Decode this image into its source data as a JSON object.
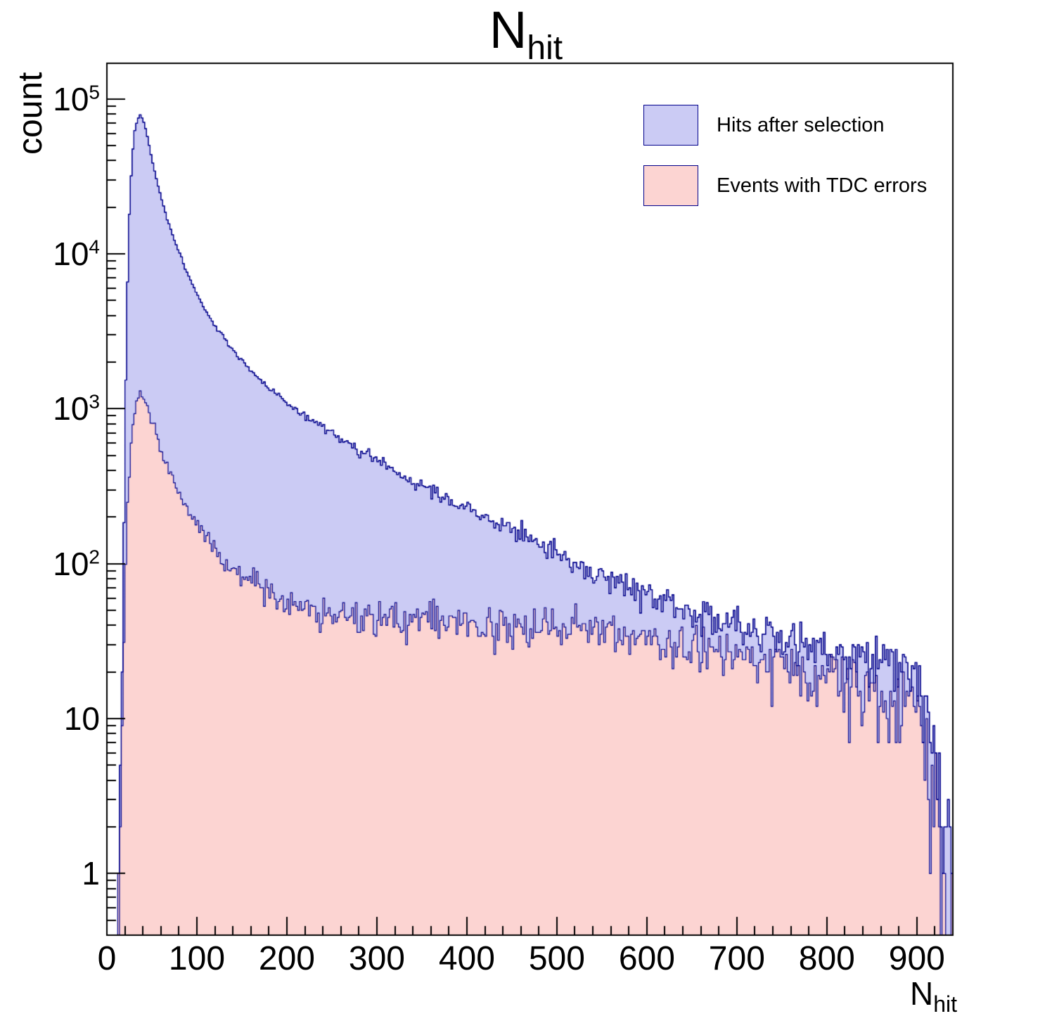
{
  "title": {
    "text": "N",
    "subscript": "hit"
  },
  "axes": {
    "y": {
      "label": "count",
      "scale": "log",
      "major_ticks": [
        {
          "base": "1",
          "value": 1
        },
        {
          "base": "10",
          "value": 10
        },
        {
          "base": "10",
          "exp": "2",
          "value": 100
        },
        {
          "base": "10",
          "exp": "3",
          "value": 1000
        },
        {
          "base": "10",
          "exp": "4",
          "value": 10000
        },
        {
          "base": "10",
          "exp": "5",
          "value": 100000
        }
      ]
    },
    "x": {
      "label": "N",
      "label_subscript": "hit",
      "major_tick_values": [
        0,
        100,
        200,
        300,
        400,
        500,
        600,
        700,
        800,
        900
      ],
      "minor_tick_step": 20
    }
  },
  "legend": {
    "position": "top-right",
    "items": [
      {
        "label": "Hits after selection",
        "fill": "#cbcbf4",
        "line": "#00008b"
      },
      {
        "label": "Events with TDC errors",
        "fill": "#fcd4d2",
        "line": "#00008b"
      }
    ]
  },
  "chart_data": {
    "type": "area",
    "title": "N_hit",
    "xlabel": "N_hit",
    "ylabel": "count",
    "y_scale": "log",
    "xlim": [
      0,
      940
    ],
    "ylim": [
      0.4,
      170000
    ],
    "bin_width": 2,
    "noise_seed": 7,
    "noise_model": "poisson-per-bin",
    "series": [
      {
        "name": "Hits after selection",
        "fill": "#cbcbf4",
        "line": "#00008b",
        "anchors": [
          [
            9,
            0.4
          ],
          [
            12,
            0.8
          ],
          [
            15,
            3
          ],
          [
            18,
            60
          ],
          [
            20,
            600
          ],
          [
            22,
            4000
          ],
          [
            25,
            18000
          ],
          [
            28,
            42000
          ],
          [
            31,
            62000
          ],
          [
            34,
            74000
          ],
          [
            37,
            79000
          ],
          [
            40,
            74000
          ],
          [
            43,
            64000
          ],
          [
            46,
            54000
          ],
          [
            50,
            41000
          ],
          [
            55,
            30500
          ],
          [
            60,
            23500
          ],
          [
            65,
            18500
          ],
          [
            70,
            15000
          ],
          [
            75,
            12300
          ],
          [
            80,
            10300
          ],
          [
            85,
            8700
          ],
          [
            90,
            7400
          ],
          [
            95,
            6400
          ],
          [
            100,
            5500
          ],
          [
            110,
            4250
          ],
          [
            120,
            3450
          ],
          [
            130,
            2850
          ],
          [
            140,
            2400
          ],
          [
            150,
            2060
          ],
          [
            160,
            1790
          ],
          [
            170,
            1560
          ],
          [
            180,
            1370
          ],
          [
            190,
            1220
          ],
          [
            200,
            1090
          ],
          [
            215,
            940
          ],
          [
            230,
            815
          ],
          [
            245,
            715
          ],
          [
            260,
            630
          ],
          [
            275,
            560
          ],
          [
            290,
            498
          ],
          [
            305,
            447
          ],
          [
            320,
            399
          ],
          [
            335,
            356
          ],
          [
            350,
            318
          ],
          [
            365,
            286
          ],
          [
            380,
            258
          ],
          [
            395,
            233
          ],
          [
            410,
            211
          ],
          [
            425,
            192
          ],
          [
            440,
            174
          ],
          [
            455,
            158
          ],
          [
            470,
            144
          ],
          [
            485,
            130
          ],
          [
            500,
            116
          ],
          [
            515,
            105
          ],
          [
            530,
            96
          ],
          [
            545,
            88
          ],
          [
            560,
            81
          ],
          [
            575,
            74
          ],
          [
            590,
            68
          ],
          [
            605,
            63
          ],
          [
            620,
            58
          ],
          [
            635,
            54
          ],
          [
            650,
            51
          ],
          [
            665,
            48
          ],
          [
            680,
            45
          ],
          [
            695,
            42
          ],
          [
            710,
            40
          ],
          [
            725,
            38
          ],
          [
            740,
            36
          ],
          [
            755,
            34
          ],
          [
            770,
            32
          ],
          [
            785,
            30
          ],
          [
            800,
            28
          ],
          [
            815,
            27
          ],
          [
            830,
            26
          ],
          [
            845,
            25
          ],
          [
            860,
            24
          ],
          [
            875,
            23
          ],
          [
            890,
            21
          ],
          [
            900,
            20
          ],
          [
            906,
            17
          ],
          [
            912,
            12
          ],
          [
            918,
            8
          ],
          [
            924,
            5
          ],
          [
            930,
            3
          ],
          [
            935,
            2
          ],
          [
            940,
            1
          ]
        ]
      },
      {
        "name": "Events with TDC errors",
        "fill": "#fcd4d2",
        "line": "#00008b",
        "anchors": [
          [
            11,
            0.4
          ],
          [
            14,
            1
          ],
          [
            17,
            8
          ],
          [
            20,
            60
          ],
          [
            23,
            250
          ],
          [
            26,
            550
          ],
          [
            29,
            850
          ],
          [
            32,
            1050
          ],
          [
            35,
            1180
          ],
          [
            38,
            1250
          ],
          [
            41,
            1230
          ],
          [
            44,
            1120
          ],
          [
            47,
            980
          ],
          [
            50,
            850
          ],
          [
            54,
            710
          ],
          [
            58,
            600
          ],
          [
            62,
            515
          ],
          [
            66,
            445
          ],
          [
            70,
            390
          ],
          [
            75,
            330
          ],
          [
            80,
            287
          ],
          [
            85,
            252
          ],
          [
            90,
            224
          ],
          [
            95,
            200
          ],
          [
            100,
            180
          ],
          [
            110,
            148
          ],
          [
            120,
            126
          ],
          [
            130,
            109
          ],
          [
            140,
            96
          ],
          [
            150,
            86
          ],
          [
            160,
            78
          ],
          [
            170,
            71
          ],
          [
            180,
            65
          ],
          [
            190,
            60
          ],
          [
            200,
            56
          ],
          [
            215,
            52
          ],
          [
            230,
            49
          ],
          [
            245,
            47
          ],
          [
            260,
            46
          ],
          [
            280,
            45
          ],
          [
            300,
            44
          ],
          [
            320,
            44
          ],
          [
            340,
            43
          ],
          [
            360,
            43
          ],
          [
            380,
            43
          ],
          [
            400,
            42
          ],
          [
            420,
            42
          ],
          [
            440,
            41
          ],
          [
            460,
            40
          ],
          [
            480,
            40
          ],
          [
            500,
            39
          ],
          [
            520,
            38
          ],
          [
            540,
            37
          ],
          [
            560,
            36
          ],
          [
            580,
            35
          ],
          [
            600,
            34
          ],
          [
            620,
            32
          ],
          [
            640,
            31
          ],
          [
            660,
            29
          ],
          [
            680,
            28
          ],
          [
            700,
            26
          ],
          [
            720,
            25
          ],
          [
            740,
            23
          ],
          [
            760,
            22
          ],
          [
            780,
            20
          ],
          [
            800,
            19
          ],
          [
            820,
            18
          ],
          [
            840,
            16
          ],
          [
            855,
            15
          ],
          [
            870,
            15
          ],
          [
            885,
            14
          ],
          [
            895,
            13
          ],
          [
            903,
            11
          ],
          [
            910,
            8
          ],
          [
            916,
            5
          ],
          [
            922,
            3
          ],
          [
            928,
            1.5
          ],
          [
            934,
            0.7
          ],
          [
            940,
            0.3
          ]
        ]
      }
    ]
  }
}
